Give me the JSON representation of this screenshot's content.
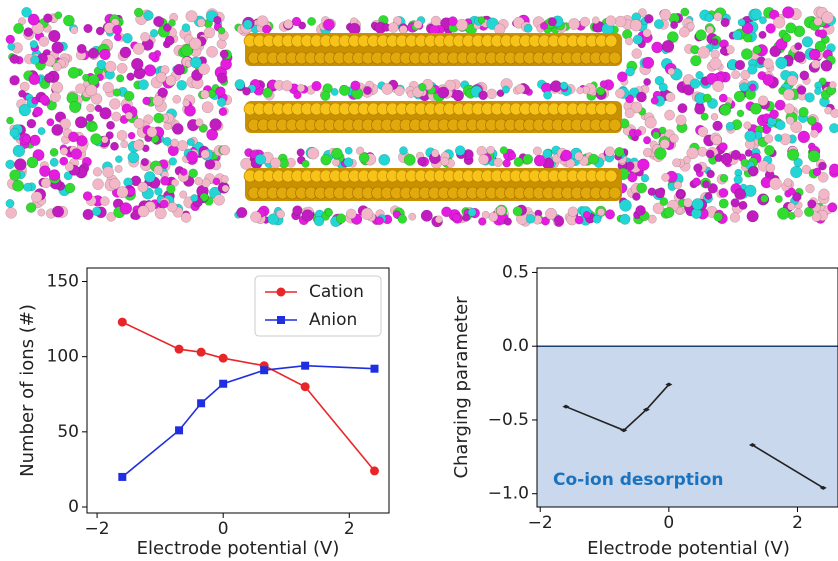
{
  "chart_data": [
    {
      "type": "line",
      "xlabel": "Electrode potential (V)",
      "ylabel": "Number of ions (#)",
      "x": [
        -1.6,
        -0.7,
        -0.35,
        0,
        0.65,
        1.3,
        2.4
      ],
      "series": [
        {
          "name": "Cation",
          "color": "#e8262a",
          "marker": "circle",
          "values": [
            123,
            105,
            103,
            99,
            94,
            80,
            24
          ]
        },
        {
          "name": "Anion",
          "color": "#1f2ee0",
          "marker": "square",
          "values": [
            20,
            51,
            69,
            82,
            91,
            94,
            92
          ]
        }
      ],
      "xlim": [
        -2.16,
        2.63
      ],
      "ylim": [
        -4,
        159
      ],
      "xticks": [
        {
          "value": -2,
          "label": "−2"
        },
        0,
        2
      ],
      "yticks": [
        0,
        50,
        100,
        150
      ],
      "grid": false,
      "legend": "upper right"
    },
    {
      "type": "line",
      "xlabel": "Electrode potential (V)",
      "ylabel": "Charging parameter",
      "annotation": "Co-ion desorption",
      "annotation_color": "#1a73c0",
      "x": [
        -1.6,
        -0.7,
        -0.35,
        0,
        0.65,
        1.3,
        2.4
      ],
      "series": [
        {
          "color": "#222222",
          "marker": "diamond",
          "values": [
            -0.41,
            -0.57,
            -0.43,
            -0.26,
            null,
            -0.67,
            -0.96
          ]
        }
      ],
      "xlim": [
        -2.05,
        2.63
      ],
      "ylim": [
        -1.09,
        0.53
      ],
      "xticks": [
        {
          "value": -2,
          "label": "−2"
        },
        0,
        2
      ],
      "yticks": [
        {
          "value": -1,
          "label": "−1.0"
        },
        {
          "value": -0.5,
          "label": "−0.5"
        },
        {
          "value": 0,
          "label": "0.0"
        },
        0.5
      ],
      "reference_line": 0,
      "reference_color": "#1d3f6e",
      "shade_below_reference": "#c9d8ec",
      "grid": false
    }
  ]
}
